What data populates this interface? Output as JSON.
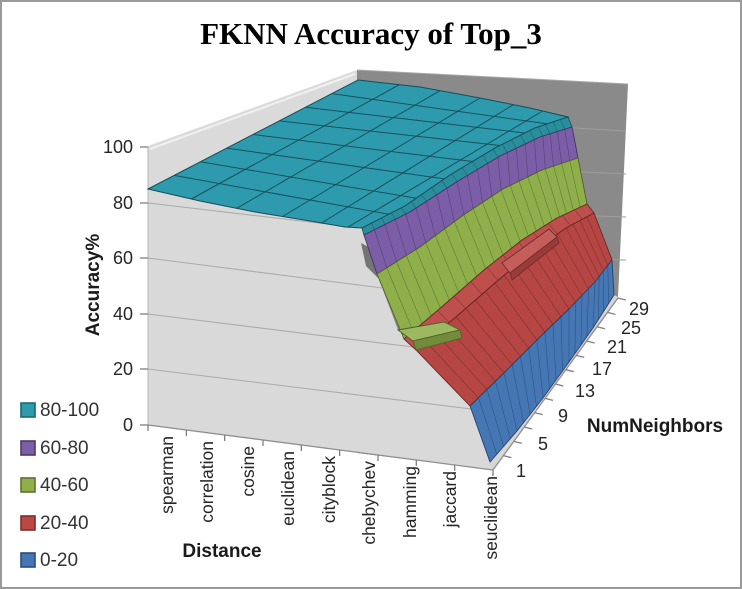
{
  "title": "FKNN Accuracy of Top_3",
  "axes": {
    "value": {
      "title": "Accuracy%",
      "ticks": [
        "100",
        "80",
        "60",
        "40",
        "20",
        "0"
      ]
    },
    "category": {
      "title": "Distance",
      "labels": [
        "spearman",
        "correlation",
        "cosine",
        "euclidean",
        "cityblock",
        "chebychev",
        "hamming",
        "jaccard",
        "seuclidean"
      ]
    },
    "depth": {
      "title": "NumNeighbors",
      "labels": [
        "1",
        "5",
        "9",
        "13",
        "17",
        "21",
        "25",
        "29"
      ]
    }
  },
  "legend": {
    "items": [
      {
        "label": "80-100",
        "color": "#2E9AAD",
        "border": "#1E6875"
      },
      {
        "label": "60-80",
        "color": "#7B5EA7",
        "border": "#4C3A68"
      },
      {
        "label": "40-60",
        "color": "#8FAF4B",
        "border": "#5C7230"
      },
      {
        "label": "20-40",
        "color": "#BC4845",
        "border": "#7C2E2C"
      },
      {
        "label": "0-20",
        "color": "#4677B5",
        "border": "#2C4C77"
      }
    ]
  },
  "chart_data": {
    "type": "surface",
    "title": "FKNN Accuracy of Top_3",
    "xlabel": "Distance",
    "ylabel": "Accuracy%",
    "zlabel": "NumNeighbors",
    "value_range": [
      0,
      100
    ],
    "bands": [
      {
        "range": "80-100",
        "color": "#2E9AAD"
      },
      {
        "range": "60-80",
        "color": "#7B5EA7"
      },
      {
        "range": "40-60",
        "color": "#8FAF4B"
      },
      {
        "range": "20-40",
        "color": "#BC4845"
      },
      {
        "range": "0-20",
        "color": "#4677B5"
      }
    ],
    "categories": [
      "spearman",
      "correlation",
      "cosine",
      "euclidean",
      "cityblock",
      "chebychev",
      "hamming",
      "jaccard",
      "seuclidean"
    ],
    "series": [
      {
        "name": 1,
        "values": [
          85,
          85,
          86,
          86,
          87,
          82,
          45,
          28,
          2
        ]
      },
      {
        "name": 5,
        "values": [
          88,
          89,
          90,
          90,
          91,
          88,
          40,
          29,
          2
        ]
      },
      {
        "name": 9,
        "values": [
          90,
          91,
          92,
          92,
          93,
          90,
          38,
          30,
          3
        ]
      },
      {
        "name": 13,
        "values": [
          91,
          92,
          93,
          93,
          94,
          92,
          37,
          31,
          3
        ]
      },
      {
        "name": 17,
        "values": [
          92,
          93,
          94,
          94,
          94,
          93,
          36,
          33,
          3
        ]
      },
      {
        "name": 21,
        "values": [
          92,
          93,
          94,
          94,
          95,
          93,
          36,
          35,
          4
        ]
      },
      {
        "name": 25,
        "values": [
          93,
          94,
          95,
          95,
          95,
          94,
          35,
          36,
          4
        ]
      },
      {
        "name": 29,
        "values": [
          93,
          94,
          95,
          95,
          95,
          94,
          35,
          37,
          4
        ]
      }
    ],
    "legend_position": "left",
    "grid": true
  }
}
